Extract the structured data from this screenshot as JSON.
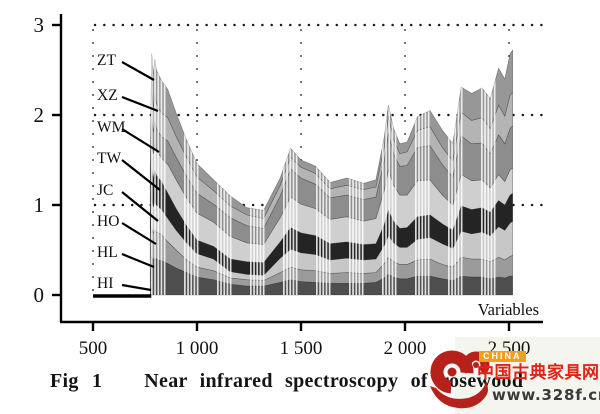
{
  "caption": {
    "fig": "Fig 1",
    "text": "Near infrared spectroscopy of rosewood"
  },
  "watermark": {
    "badge": "CHINA",
    "site_name": "中国古典家具网",
    "url": "www.328f.cn",
    "brand_red": "#b7211c",
    "badge_orange": "#f09e1e"
  },
  "chart_data": {
    "type": "area",
    "stacking": "stacked",
    "title": "Fig 1  Near infrared spectroscopy of rosewood",
    "xlabel": "Variables",
    "ylabel": "",
    "ylim": [
      0,
      3
    ],
    "yticks": [
      {
        "v": 0,
        "label": "0"
      },
      {
        "v": 1,
        "label": "1"
      },
      {
        "v": 2,
        "label": "2"
      },
      {
        "v": 3,
        "label": "3"
      }
    ],
    "xticks": [
      {
        "v": 500,
        "label": "500"
      },
      {
        "v": 1000,
        "label": "1 000"
      },
      {
        "v": 1500,
        "label": "1 500"
      },
      {
        "v": 2000,
        "label": "2 000"
      },
      {
        "v": 2500,
        "label": "2 500"
      }
    ],
    "grid": "dotted",
    "legend_order_top_down": [
      "ZT",
      "XZ",
      "WM",
      "TW",
      "JC",
      "HO",
      "HL",
      "HI"
    ],
    "pre_data_baseline_x": [
      500,
      780
    ],
    "representation": "cumulative_stack_tops (each series array is the absorbance level of the TOP of that band; band value = this minus previous series)",
    "x": [
      775,
      782,
      790,
      797,
      805,
      815,
      830,
      860,
      900,
      950,
      1000,
      1080,
      1160,
      1240,
      1320,
      1400,
      1450,
      1500,
      1570,
      1640,
      1720,
      1800,
      1860,
      1900,
      1920,
      1945,
      1975,
      2010,
      2060,
      2120,
      2180,
      2230,
      2270,
      2320,
      2370,
      2410,
      2450,
      2480,
      2505,
      2518
    ],
    "series": [
      {
        "name": "HI",
        "color": "#4e4e4e",
        "cum": [
          0.22,
          0.43,
          0.39,
          0.42,
          0.4,
          0.39,
          0.38,
          0.35,
          0.3,
          0.25,
          0.2,
          0.17,
          0.12,
          0.1,
          0.1,
          0.14,
          0.17,
          0.15,
          0.14,
          0.13,
          0.13,
          0.13,
          0.14,
          0.19,
          0.23,
          0.2,
          0.18,
          0.18,
          0.21,
          0.21,
          0.18,
          0.16,
          0.21,
          0.2,
          0.2,
          0.18,
          0.2,
          0.19,
          0.21,
          0.21
        ]
      },
      {
        "name": "HL",
        "color": "#9b9b9b",
        "cum": [
          0.39,
          0.75,
          0.69,
          0.73,
          0.7,
          0.69,
          0.67,
          0.59,
          0.5,
          0.39,
          0.31,
          0.27,
          0.19,
          0.17,
          0.16,
          0.25,
          0.31,
          0.28,
          0.27,
          0.24,
          0.25,
          0.24,
          0.25,
          0.35,
          0.42,
          0.37,
          0.34,
          0.34,
          0.39,
          0.4,
          0.34,
          0.31,
          0.42,
          0.4,
          0.4,
          0.37,
          0.42,
          0.39,
          0.43,
          0.44
        ]
      },
      {
        "name": "HO",
        "color": "#c7c7c7",
        "cum": [
          0.56,
          1.07,
          0.98,
          1.05,
          1.0,
          0.98,
          0.95,
          0.85,
          0.72,
          0.58,
          0.46,
          0.4,
          0.26,
          0.23,
          0.22,
          0.41,
          0.51,
          0.47,
          0.45,
          0.39,
          0.41,
          0.39,
          0.4,
          0.55,
          0.66,
          0.58,
          0.53,
          0.53,
          0.62,
          0.64,
          0.57,
          0.52,
          0.71,
          0.68,
          0.7,
          0.66,
          0.76,
          0.72,
          0.8,
          0.82
        ]
      },
      {
        "name": "JC",
        "color": "#242424",
        "cum": [
          0.74,
          1.42,
          1.3,
          1.39,
          1.33,
          1.3,
          1.26,
          1.13,
          0.96,
          0.77,
          0.61,
          0.54,
          0.4,
          0.37,
          0.36,
          0.59,
          0.75,
          0.69,
          0.66,
          0.57,
          0.59,
          0.56,
          0.57,
          0.78,
          0.94,
          0.82,
          0.74,
          0.75,
          0.87,
          0.89,
          0.79,
          0.72,
          0.99,
          0.95,
          0.97,
          0.92,
          1.05,
          1.0,
          1.11,
          1.13
        ]
      },
      {
        "name": "TW",
        "color": "#cfcfcf",
        "cum": [
          0.9,
          1.72,
          1.57,
          1.68,
          1.6,
          1.57,
          1.52,
          1.45,
          1.28,
          1.08,
          0.91,
          0.81,
          0.65,
          0.58,
          0.56,
          0.86,
          1.09,
          1.01,
          0.96,
          0.84,
          0.87,
          0.82,
          0.85,
          1.16,
          1.39,
          1.22,
          1.11,
          1.11,
          1.27,
          1.28,
          1.11,
          1.0,
          1.34,
          1.27,
          1.28,
          1.19,
          1.34,
          1.26,
          1.39,
          1.41
        ]
      },
      {
        "name": "WM",
        "color": "#8d8d8d",
        "cum": [
          1.04,
          1.98,
          1.81,
          1.94,
          1.85,
          1.81,
          1.76,
          1.71,
          1.53,
          1.32,
          1.13,
          1.01,
          0.86,
          0.77,
          0.74,
          1.1,
          1.4,
          1.3,
          1.23,
          1.08,
          1.11,
          1.06,
          1.09,
          1.49,
          1.8,
          1.57,
          1.43,
          1.44,
          1.64,
          1.66,
          1.45,
          1.31,
          1.77,
          1.68,
          1.69,
          1.57,
          1.78,
          1.68,
          1.85,
          1.88
        ]
      },
      {
        "name": "XZ",
        "color": "#b4b4b4",
        "cum": [
          1.19,
          2.28,
          2.08,
          2.23,
          2.13,
          2.08,
          2.02,
          1.97,
          1.76,
          1.53,
          1.31,
          1.16,
          0.99,
          0.89,
          0.85,
          1.22,
          1.53,
          1.42,
          1.35,
          1.18,
          1.22,
          1.17,
          1.2,
          1.64,
          1.98,
          1.73,
          1.57,
          1.59,
          1.83,
          1.87,
          1.64,
          1.49,
          2.03,
          1.94,
          1.97,
          1.85,
          2.11,
          1.99,
          2.22,
          2.25
        ]
      },
      {
        "name": "ZT",
        "color": "#979797",
        "cum": [
          1.4,
          2.68,
          2.45,
          2.62,
          2.5,
          2.45,
          2.38,
          2.28,
          2.02,
          1.72,
          1.46,
          1.28,
          1.1,
          0.97,
          0.94,
          1.3,
          1.63,
          1.5,
          1.43,
          1.25,
          1.3,
          1.24,
          1.28,
          1.75,
          2.11,
          1.85,
          1.68,
          1.7,
          1.98,
          2.05,
          1.83,
          1.68,
          2.31,
          2.24,
          2.3,
          2.18,
          2.52,
          2.4,
          2.68,
          2.72
        ]
      }
    ]
  }
}
